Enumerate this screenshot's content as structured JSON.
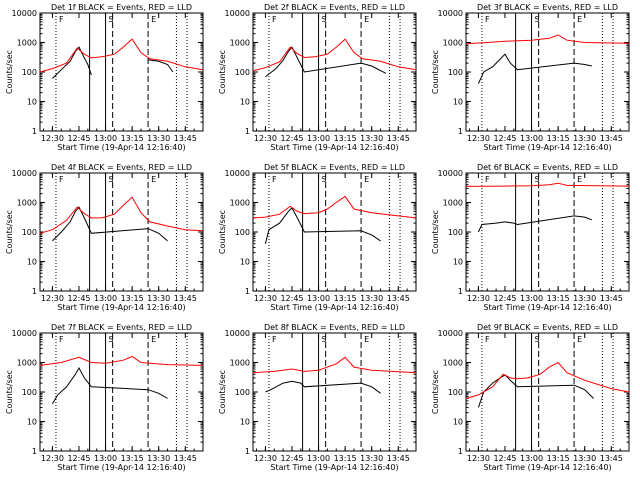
{
  "figure": {
    "ylabel": "Counts/sec",
    "xlabel": "Start Time (19-Apr-14 12:16:40)",
    "x_tick_labels": [
      "12:30",
      "12:45",
      "13:00",
      "13:15",
      "13:30",
      "13:45"
    ],
    "y_tick_labels": [
      "1",
      "10",
      "100",
      "1000",
      "10000"
    ],
    "marker_labels": [
      "F",
      "S",
      "E"
    ],
    "colors": {
      "events": "#000000",
      "lld": "#ff0000",
      "axes": "#000000"
    }
  },
  "chart_data": [
    {
      "type": "line",
      "title": "Det 1f BLACK = Events, RED = LLD",
      "xlabel": "Start Time (19-Apr-14 12:16:40)",
      "ylabel": "Counts/sec",
      "y_scale": "log",
      "xlim": [
        "12:23",
        "13:55"
      ],
      "ylim": [
        1,
        10000
      ],
      "series": [
        {
          "name": "Events",
          "color": "#000000",
          "points": [
            [
              12.6,
              "gap"
            ],
            [
              "12:30",
              60
            ],
            [
              "12:35",
              120
            ],
            [
              "12:40",
              230
            ],
            [
              "12:43",
              500
            ],
            [
              "12:45",
              700
            ],
            [
              "12:48",
              300
            ],
            [
              "12:50",
              180
            ],
            [
              "12:52",
              80
            ],
            [
              "13:00",
              "gap"
            ],
            [
              "13:24",
              260
            ],
            [
              "13:30",
              230
            ],
            [
              "13:35",
              180
            ],
            [
              "13:38",
              100
            ]
          ]
        },
        {
          "name": "LLD",
          "color": "#ff0000",
          "points": [
            [
              "12:23",
              100
            ],
            [
              "12:30",
              130
            ],
            [
              "12:38",
              200
            ],
            [
              "12:44",
              650
            ],
            [
              "12:48",
              400
            ],
            [
              "12:52",
              300
            ],
            [
              "12:58",
              330
            ],
            [
              "13:05",
              400
            ],
            [
              "13:10",
              700
            ],
            [
              "13:15",
              1300
            ],
            [
              "13:20",
              450
            ],
            [
              "13:25",
              280
            ],
            [
              "13:35",
              230
            ],
            [
              "13:45",
              150
            ],
            [
              "13:55",
              120
            ]
          ]
        }
      ]
    },
    {
      "type": "line",
      "title": "Det 2f BLACK = Events, RED = LLD",
      "xlabel": "Start Time (19-Apr-14 12:16:40)",
      "ylabel": "Counts/sec",
      "y_scale": "log",
      "xlim": [
        "12:23",
        "13:55"
      ],
      "ylim": [
        1,
        10000
      ],
      "series": [
        {
          "name": "Events",
          "color": "#000000",
          "points": [
            [
              "12:30",
              70
            ],
            [
              "12:36",
              130
            ],
            [
              "12:40",
              250
            ],
            [
              "12:43",
              500
            ],
            [
              "12:45",
              700
            ],
            [
              "12:48",
              300
            ],
            [
              "12:52",
              100
            ],
            [
              "13:24",
              200
            ],
            [
              "13:30",
              160
            ],
            [
              "13:38",
              90
            ]
          ]
        },
        {
          "name": "LLD",
          "color": "#ff0000",
          "points": [
            [
              "12:23",
              110
            ],
            [
              "12:30",
              140
            ],
            [
              "12:38",
              220
            ],
            [
              "12:44",
              700
            ],
            [
              "12:48",
              420
            ],
            [
              "12:52",
              310
            ],
            [
              "12:58",
              330
            ],
            [
              "13:05",
              400
            ],
            [
              "13:10",
              700
            ],
            [
              "13:15",
              1300
            ],
            [
              "13:20",
              450
            ],
            [
              "13:25",
              280
            ],
            [
              "13:35",
              230
            ],
            [
              "13:45",
              150
            ],
            [
              "13:55",
              120
            ]
          ]
        }
      ]
    },
    {
      "type": "line",
      "title": "Det 3f BLACK = Events, RED = LLD",
      "xlabel": "Start Time (19-Apr-14 12:16:40)",
      "ylabel": "Counts/sec",
      "y_scale": "log",
      "xlim": [
        "12:23",
        "13:55"
      ],
      "ylim": [
        1,
        10000
      ],
      "series": [
        {
          "name": "Events",
          "color": "#000000",
          "points": [
            [
              "12:30",
              40
            ],
            [
              "12:33",
              100
            ],
            [
              "12:38",
              150
            ],
            [
              "12:43",
              300
            ],
            [
              "12:45",
              400
            ],
            [
              "12:48",
              200
            ],
            [
              "12:52",
              120
            ],
            [
              "13:24",
              200
            ],
            [
              "13:30",
              180
            ],
            [
              "13:34",
              160
            ]
          ]
        },
        {
          "name": "LLD",
          "color": "#ff0000",
          "points": [
            [
              "12:23",
              900
            ],
            [
              "12:35",
              1000
            ],
            [
              "12:45",
              1100
            ],
            [
              "13:00",
              1200
            ],
            [
              "13:10",
              1400
            ],
            [
              "13:15",
              1800
            ],
            [
              "13:20",
              1200
            ],
            [
              "13:30",
              1000
            ],
            [
              "13:55",
              950
            ]
          ]
        }
      ]
    },
    {
      "type": "line",
      "title": "Det 4f BLACK = Events, RED = LLD",
      "xlabel": "Start Time (19-Apr-14 12:16:40)",
      "ylabel": "Counts/sec",
      "y_scale": "log",
      "xlim": [
        "12:23",
        "13:55"
      ],
      "ylim": [
        1,
        10000
      ],
      "series": [
        {
          "name": "Events",
          "color": "#000000",
          "points": [
            [
              "12:30",
              50
            ],
            [
              "12:35",
              100
            ],
            [
              "12:40",
              220
            ],
            [
              "12:43",
              500
            ],
            [
              "12:45",
              700
            ],
            [
              "12:48",
              300
            ],
            [
              "12:52",
              90
            ],
            [
              "13:24",
              130
            ],
            [
              "13:30",
              90
            ],
            [
              "13:35",
              50
            ]
          ]
        },
        {
          "name": "LLD",
          "color": "#ff0000",
          "points": [
            [
              "12:23",
              90
            ],
            [
              "12:30",
              120
            ],
            [
              "12:38",
              250
            ],
            [
              "12:44",
              700
            ],
            [
              "12:48",
              420
            ],
            [
              "12:52",
              300
            ],
            [
              "12:58",
              300
            ],
            [
              "13:05",
              400
            ],
            [
              "13:10",
              800
            ],
            [
              "13:15",
              1500
            ],
            [
              "13:20",
              450
            ],
            [
              "13:25",
              220
            ],
            [
              "13:35",
              160
            ],
            [
              "13:45",
              120
            ],
            [
              "13:55",
              110
            ]
          ]
        }
      ]
    },
    {
      "type": "line",
      "title": "Det 5f BLACK = Events, RED = LLD",
      "xlabel": "Start Time (19-Apr-14 12:16:40)",
      "ylabel": "Counts/sec",
      "y_scale": "log",
      "xlim": [
        "12:23",
        "13:55"
      ],
      "ylim": [
        1,
        10000
      ],
      "series": [
        {
          "name": "Events",
          "color": "#000000",
          "points": [
            [
              "12:30",
              40
            ],
            [
              "12:32",
              120
            ],
            [
              "12:38",
              200
            ],
            [
              "12:43",
              500
            ],
            [
              "12:45",
              650
            ],
            [
              "12:48",
              300
            ],
            [
              "12:52",
              100
            ],
            [
              "13:24",
              110
            ],
            [
              "13:30",
              80
            ],
            [
              "13:35",
              50
            ]
          ]
        },
        {
          "name": "LLD",
          "color": "#ff0000",
          "points": [
            [
              "12:23",
              300
            ],
            [
              "12:30",
              320
            ],
            [
              "12:38",
              400
            ],
            [
              "12:44",
              750
            ],
            [
              "12:48",
              500
            ],
            [
              "12:52",
              420
            ],
            [
              "13:00",
              450
            ],
            [
              "13:05",
              600
            ],
            [
              "13:10",
              1000
            ],
            [
              "13:15",
              1600
            ],
            [
              "13:20",
              600
            ],
            [
              "13:30",
              450
            ],
            [
              "13:45",
              350
            ],
            [
              "13:55",
              300
            ]
          ]
        }
      ]
    },
    {
      "type": "line",
      "title": "Det 6f BLACK = Events, RED = LLD",
      "xlabel": "Start Time (19-Apr-14 12:16:40)",
      "ylabel": "Counts/sec",
      "y_scale": "log",
      "xlim": [
        "12:23",
        "13:55"
      ],
      "ylim": [
        1,
        10000
      ],
      "series": [
        {
          "name": "Events",
          "color": "#000000",
          "points": [
            [
              "12:30",
              100
            ],
            [
              "12:32",
              180
            ],
            [
              "12:40",
              200
            ],
            [
              "12:45",
              220
            ],
            [
              "12:50",
              200
            ],
            [
              "12:52",
              180
            ],
            [
              "13:24",
              350
            ],
            [
              "13:30",
              320
            ],
            [
              "13:34",
              260
            ]
          ]
        },
        {
          "name": "LLD",
          "color": "#ff0000",
          "points": [
            [
              "12:23",
              3500
            ],
            [
              "12:45",
              3600
            ],
            [
              "13:00",
              3700
            ],
            [
              "13:10",
              4000
            ],
            [
              "13:15",
              4500
            ],
            [
              "13:20",
              3800
            ],
            [
              "13:55",
              3600
            ]
          ]
        }
      ]
    },
    {
      "type": "line",
      "title": "Det 7f BLACK = Events, RED = LLD",
      "xlabel": "Start Time (19-Apr-14 12:16:40)",
      "ylabel": "Counts/sec",
      "y_scale": "log",
      "xlim": [
        "12:23",
        "13:55"
      ],
      "ylim": [
        1,
        10000
      ],
      "series": [
        {
          "name": "Events",
          "color": "#000000",
          "points": [
            [
              "12:30",
              40
            ],
            [
              "12:33",
              80
            ],
            [
              "12:38",
              150
            ],
            [
              "12:43",
              400
            ],
            [
              "12:45",
              650
            ],
            [
              "12:48",
              300
            ],
            [
              "12:52",
              150
            ],
            [
              "13:24",
              120
            ],
            [
              "13:30",
              90
            ],
            [
              "13:35",
              60
            ]
          ]
        },
        {
          "name": "LLD",
          "color": "#ff0000",
          "points": [
            [
              "12:23",
              800
            ],
            [
              "12:35",
              1000
            ],
            [
              "12:45",
              1500
            ],
            [
              "12:52",
              1000
            ],
            [
              "13:00",
              950
            ],
            [
              "13:10",
              1200
            ],
            [
              "13:15",
              1600
            ],
            [
              "13:20",
              1000
            ],
            [
              "13:35",
              850
            ],
            [
              "13:55",
              800
            ]
          ]
        }
      ]
    },
    {
      "type": "line",
      "title": "Det 8f BLACK = Events, RED = LLD",
      "xlabel": "Start Time (19-Apr-14 12:16:40)",
      "ylabel": "Counts/sec",
      "y_scale": "log",
      "xlim": [
        "12:23",
        "13:55"
      ],
      "ylim": [
        1,
        10000
      ],
      "series": [
        {
          "name": "Events",
          "color": "#000000",
          "points": [
            [
              "12:30",
              100
            ],
            [
              "12:33",
              120
            ],
            [
              "12:40",
              200
            ],
            [
              "12:45",
              230
            ],
            [
              "12:50",
              200
            ],
            [
              "12:52",
              150
            ],
            [
              "13:24",
              200
            ],
            [
              "13:30",
              150
            ],
            [
              "13:35",
              90
            ]
          ]
        },
        {
          "name": "LLD",
          "color": "#ff0000",
          "points": [
            [
              "12:23",
              450
            ],
            [
              "12:35",
              500
            ],
            [
              "12:45",
              600
            ],
            [
              "12:52",
              500
            ],
            [
              "13:00",
              550
            ],
            [
              "13:10",
              900
            ],
            [
              "13:15",
              1500
            ],
            [
              "13:20",
              700
            ],
            [
              "13:30",
              550
            ],
            [
              "13:55",
              450
            ]
          ]
        }
      ]
    },
    {
      "type": "line",
      "title": "Det 9f BLACK = Events, RED = LLD",
      "xlabel": "Start Time (19-Apr-14 12:16:40)",
      "ylabel": "Counts/sec",
      "y_scale": "log",
      "xlim": [
        "12:23",
        "13:55"
      ],
      "ylim": [
        1,
        10000
      ],
      "series": [
        {
          "name": "Events",
          "color": "#000000",
          "points": [
            [
              "12:30",
              30
            ],
            [
              "12:33",
              100
            ],
            [
              "12:38",
              200
            ],
            [
              "12:43",
              320
            ],
            [
              "12:45",
              380
            ],
            [
              "12:48",
              250
            ],
            [
              "12:52",
              150
            ],
            [
              "13:24",
              170
            ],
            [
              "13:30",
              120
            ],
            [
              "13:35",
              60
            ]
          ]
        },
        {
          "name": "LLD",
          "color": "#ff0000",
          "points": [
            [
              "12:23",
              60
            ],
            [
              "12:30",
              80
            ],
            [
              "12:38",
              150
            ],
            [
              "12:44",
              400
            ],
            [
              "12:48",
              300
            ],
            [
              "12:52",
              280
            ],
            [
              "12:58",
              300
            ],
            [
              "13:05",
              400
            ],
            [
              "13:10",
              700
            ],
            [
              "13:15",
              1000
            ],
            [
              "13:20",
              450
            ],
            [
              "13:30",
              250
            ],
            [
              "13:45",
              130
            ],
            [
              "13:55",
              100
            ]
          ]
        }
      ]
    }
  ]
}
